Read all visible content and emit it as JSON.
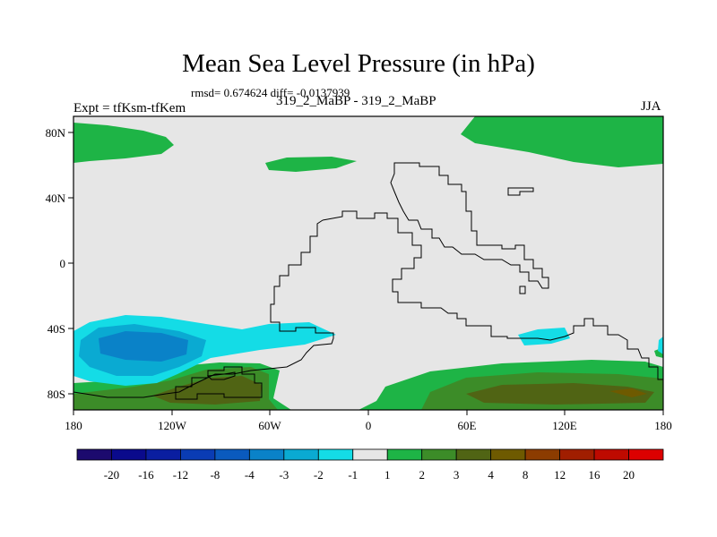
{
  "title": "Mean Sea Level Pressure (in hPa)",
  "stats": "rmsd= 0.674624 diff= -0.0137939",
  "experiment": "Expt = tfKsm-tfKem",
  "subtitle": "319_2_MaBP - 319_2_MaBP",
  "season": "JJA",
  "chart_data": {
    "type": "heatmap",
    "title": "Mean Sea Level Pressure (in hPa)",
    "units": "hPa",
    "x_axis": {
      "range": [
        -180,
        180
      ],
      "ticks": [
        {
          "value": -180,
          "label": "180"
        },
        {
          "value": -120,
          "label": "120W"
        },
        {
          "value": -60,
          "label": "60W"
        },
        {
          "value": 0,
          "label": "0"
        },
        {
          "value": 60,
          "label": "60E"
        },
        {
          "value": 120,
          "label": "120E"
        },
        {
          "value": 180,
          "label": "180"
        }
      ]
    },
    "y_axis": {
      "range": [
        -90,
        90
      ],
      "ticks": [
        {
          "value": 80,
          "label": "80N"
        },
        {
          "value": 40,
          "label": "40N"
        },
        {
          "value": 0,
          "label": "0"
        },
        {
          "value": -40,
          "label": "40S"
        },
        {
          "value": -80,
          "label": "80S"
        }
      ]
    },
    "colorbar": {
      "boundaries": [
        "-20",
        "-16",
        "-12",
        "-8",
        "-4",
        "-3",
        "-2",
        "-1",
        "1",
        "2",
        "3",
        "4",
        "8",
        "12",
        "16",
        "20"
      ],
      "colors": [
        "#1c0a6e",
        "#0a0a8c",
        "#0a1ea0",
        "#0a3cb4",
        "#0a5abe",
        "#0a82c8",
        "#0aaad2",
        "#14dce6",
        "#e6e6e6",
        "#1eb446",
        "#3c8c28",
        "#506414",
        "#6e5a00",
        "#8c3c00",
        "#a01e00",
        "#be0a00",
        "#dc0000"
      ]
    },
    "background_color": "#e6e6e6"
  }
}
